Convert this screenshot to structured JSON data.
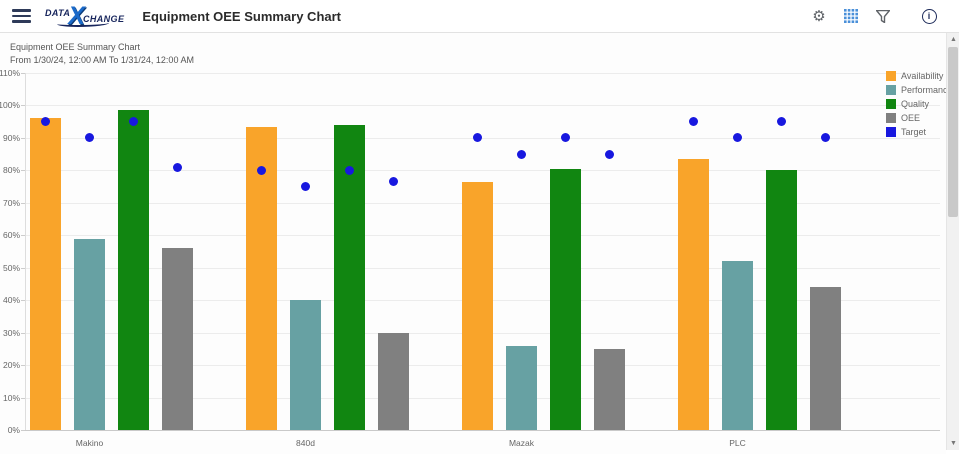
{
  "header": {
    "logo": {
      "text_pre": "DATA",
      "text_x": "X",
      "text_post": "CHANGE"
    },
    "title": "Equipment OEE Summary Chart",
    "info_glyph": "i"
  },
  "colors": {
    "accent_blue_grid_icon": "#4a90d9",
    "icon_gray": "#5f6368",
    "navy": "#17255c"
  },
  "chart_data": {
    "type": "bar",
    "title": "Equipment OEE Summary Chart",
    "subtitle": "From 1/30/24, 12:00 AM To 1/31/24, 12:00 AM",
    "categories": [
      "Makino",
      "840d",
      "Mazak",
      "PLC"
    ],
    "series": [
      {
        "name": "Availability",
        "render": "bar",
        "color": "#F9A42A",
        "values": [
          96,
          93.5,
          76.5,
          83.5
        ]
      },
      {
        "name": "Performance",
        "render": "bar",
        "color": "#67A1A3",
        "values": [
          59,
          40,
          26,
          52
        ]
      },
      {
        "name": "Quality",
        "render": "bar",
        "color": "#118611",
        "values": [
          98.5,
          94,
          80.5,
          80
        ]
      },
      {
        "name": "OEE",
        "render": "bar",
        "color": "#808080",
        "values": [
          56,
          30,
          25,
          44
        ]
      },
      {
        "name": "Target",
        "render": "point",
        "color": "#1818DF",
        "values_per_bar": [
          [
            95,
            90,
            95,
            81
          ],
          [
            80,
            75,
            80,
            76.5
          ],
          [
            90,
            85,
            90,
            85
          ],
          [
            95,
            90,
            95,
            90
          ]
        ]
      }
    ],
    "ylim": [
      0,
      110
    ],
    "ytick_step": 10,
    "ytick_format": "percent",
    "grid": true,
    "legend_position": "top-right"
  }
}
